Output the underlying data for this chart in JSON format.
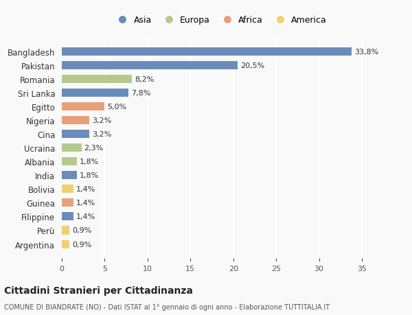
{
  "countries": [
    "Bangladesh",
    "Pakistan",
    "Romania",
    "Sri Lanka",
    "Egitto",
    "Nigeria",
    "Cina",
    "Ucraina",
    "Albania",
    "India",
    "Bolivia",
    "Guinea",
    "Filippine",
    "Perù",
    "Argentina"
  ],
  "values": [
    33.8,
    20.5,
    8.2,
    7.8,
    5.0,
    3.2,
    3.2,
    2.3,
    1.8,
    1.8,
    1.4,
    1.4,
    1.4,
    0.9,
    0.9
  ],
  "continents": [
    "Asia",
    "Asia",
    "Europa",
    "Asia",
    "Africa",
    "Africa",
    "Asia",
    "Europa",
    "Europa",
    "Asia",
    "America",
    "Africa",
    "Asia",
    "America",
    "America"
  ],
  "colors": {
    "Asia": "#6b8cba",
    "Europa": "#b5c98e",
    "Africa": "#e8a07a",
    "America": "#f0d070"
  },
  "legend_order": [
    "Asia",
    "Europa",
    "Africa",
    "America"
  ],
  "title": "Cittadini Stranieri per Cittadinanza",
  "subtitle": "COMUNE DI BIANDRATE (NO) - Dati ISTAT al 1° gennaio di ogni anno - Elaborazione TUTTITALIA.IT",
  "xlim": [
    0,
    37
  ],
  "xticks": [
    0,
    5,
    10,
    15,
    20,
    25,
    30,
    35
  ],
  "background_color": "#f9f9f9",
  "grid_color": "#ffffff",
  "bar_height": 0.6
}
